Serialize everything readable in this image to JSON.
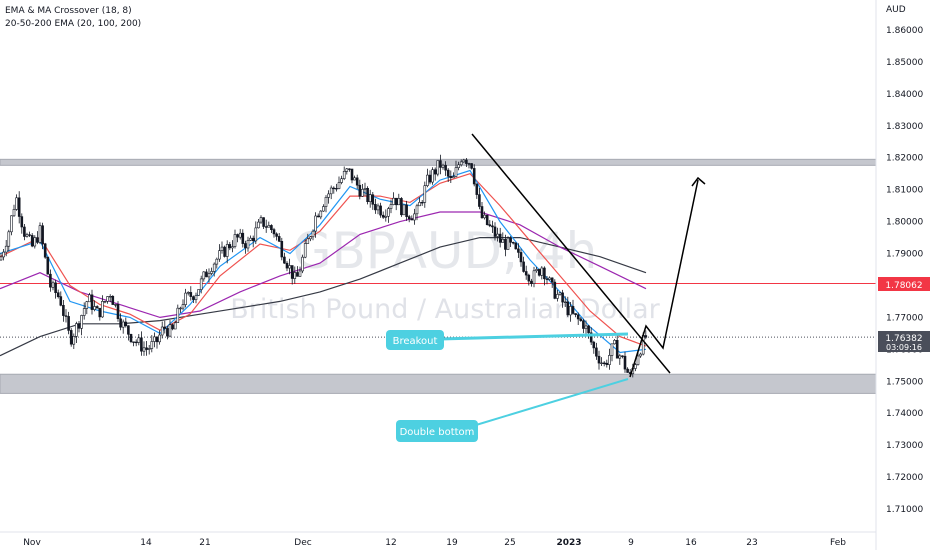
{
  "indicators": [
    "EMA & MA Crossover (18, 8)",
    "20-50-200 EMA (20, 100, 200)"
  ],
  "watermark": {
    "symbol": "GBPAUD, 4h",
    "name": "British Pound / Australian Dollar"
  },
  "price_axis": {
    "currency": "AUD",
    "ticks": [
      "1.86000",
      "1.85000",
      "1.84000",
      "1.83000",
      "1.82000",
      "1.81000",
      "1.80000",
      "1.79000",
      "1.78000",
      "1.77000",
      "1.76000",
      "1.75000",
      "1.74000",
      "1.73000",
      "1.72000",
      "1.71000"
    ]
  },
  "time_axis": {
    "ticks": [
      "Nov",
      "14",
      "21",
      "Dec",
      "12",
      "19",
      "25",
      "2023",
      "9",
      "16",
      "23",
      "Feb"
    ]
  },
  "markers": {
    "red_level_label": "1.78062",
    "last_price_label": "1.76382",
    "countdown_label": "03:09:16"
  },
  "annotations": {
    "breakout": "Breakout",
    "double_bottom": "Double bottom"
  },
  "colors": {
    "bull": "#ffffff",
    "bear": "#131722",
    "ema20": "#2196f3",
    "ema100": "#9c27b0",
    "ema200": "#363a45",
    "ema_fast": "#ef5350",
    "zone": "#b2b5be",
    "red_level": "#f23645",
    "callout": "#4dd0e1",
    "axis_text": "#131722"
  },
  "chart_data": {
    "type": "candlestick",
    "timeframe": "4h",
    "y_range": [
      1.702,
      1.866
    ],
    "price_path": [
      {
        "x": 0,
        "y": 1.788
      },
      {
        "x": 8,
        "y": 1.796
      },
      {
        "x": 16,
        "y": 1.808
      },
      {
        "x": 24,
        "y": 1.797
      },
      {
        "x": 32,
        "y": 1.792
      },
      {
        "x": 40,
        "y": 1.797
      },
      {
        "x": 50,
        "y": 1.78
      },
      {
        "x": 60,
        "y": 1.776
      },
      {
        "x": 70,
        "y": 1.763
      },
      {
        "x": 78,
        "y": 1.768
      },
      {
        "x": 88,
        "y": 1.776
      },
      {
        "x": 98,
        "y": 1.771
      },
      {
        "x": 110,
        "y": 1.778
      },
      {
        "x": 122,
        "y": 1.768
      },
      {
        "x": 134,
        "y": 1.763
      },
      {
        "x": 146,
        "y": 1.76
      },
      {
        "x": 156,
        "y": 1.762
      },
      {
        "x": 164,
        "y": 1.767
      },
      {
        "x": 172,
        "y": 1.765
      },
      {
        "x": 182,
        "y": 1.775
      },
      {
        "x": 196,
        "y": 1.778
      },
      {
        "x": 210,
        "y": 1.786
      },
      {
        "x": 222,
        "y": 1.79
      },
      {
        "x": 236,
        "y": 1.795
      },
      {
        "x": 248,
        "y": 1.793
      },
      {
        "x": 262,
        "y": 1.8
      },
      {
        "x": 274,
        "y": 1.797
      },
      {
        "x": 286,
        "y": 1.788
      },
      {
        "x": 296,
        "y": 1.781
      },
      {
        "x": 306,
        "y": 1.792
      },
      {
        "x": 316,
        "y": 1.802
      },
      {
        "x": 326,
        "y": 1.808
      },
      {
        "x": 338,
        "y": 1.812
      },
      {
        "x": 348,
        "y": 1.816
      },
      {
        "x": 360,
        "y": 1.81
      },
      {
        "x": 372,
        "y": 1.806
      },
      {
        "x": 384,
        "y": 1.803
      },
      {
        "x": 394,
        "y": 1.808
      },
      {
        "x": 404,
        "y": 1.803
      },
      {
        "x": 416,
        "y": 1.802
      },
      {
        "x": 428,
        "y": 1.813
      },
      {
        "x": 440,
        "y": 1.818
      },
      {
        "x": 452,
        "y": 1.812
      },
      {
        "x": 462,
        "y": 1.821
      },
      {
        "x": 472,
        "y": 1.818
      },
      {
        "x": 480,
        "y": 1.802
      },
      {
        "x": 490,
        "y": 1.798
      },
      {
        "x": 500,
        "y": 1.794
      },
      {
        "x": 512,
        "y": 1.792
      },
      {
        "x": 522,
        "y": 1.787
      },
      {
        "x": 532,
        "y": 1.782
      },
      {
        "x": 542,
        "y": 1.786
      },
      {
        "x": 552,
        "y": 1.779
      },
      {
        "x": 562,
        "y": 1.775
      },
      {
        "x": 574,
        "y": 1.77
      },
      {
        "x": 584,
        "y": 1.768
      },
      {
        "x": 594,
        "y": 1.76
      },
      {
        "x": 604,
        "y": 1.755
      },
      {
        "x": 614,
        "y": 1.761
      },
      {
        "x": 622,
        "y": 1.757
      },
      {
        "x": 630,
        "y": 1.751
      },
      {
        "x": 638,
        "y": 1.759
      },
      {
        "x": 646,
        "y": 1.764
      }
    ],
    "ema20_path": [
      {
        "x": 0,
        "y": 1.79
      },
      {
        "x": 40,
        "y": 1.794
      },
      {
        "x": 70,
        "y": 1.775
      },
      {
        "x": 100,
        "y": 1.772
      },
      {
        "x": 130,
        "y": 1.77
      },
      {
        "x": 160,
        "y": 1.765
      },
      {
        "x": 190,
        "y": 1.774
      },
      {
        "x": 220,
        "y": 1.786
      },
      {
        "x": 260,
        "y": 1.795
      },
      {
        "x": 290,
        "y": 1.79
      },
      {
        "x": 320,
        "y": 1.799
      },
      {
        "x": 350,
        "y": 1.811
      },
      {
        "x": 380,
        "y": 1.807
      },
      {
        "x": 410,
        "y": 1.805
      },
      {
        "x": 440,
        "y": 1.813
      },
      {
        "x": 470,
        "y": 1.816
      },
      {
        "x": 500,
        "y": 1.8
      },
      {
        "x": 530,
        "y": 1.788
      },
      {
        "x": 560,
        "y": 1.778
      },
      {
        "x": 590,
        "y": 1.767
      },
      {
        "x": 620,
        "y": 1.759
      },
      {
        "x": 646,
        "y": 1.76
      }
    ],
    "ema_fast_path": [
      {
        "x": 0,
        "y": 1.789
      },
      {
        "x": 40,
        "y": 1.795
      },
      {
        "x": 70,
        "y": 1.78
      },
      {
        "x": 100,
        "y": 1.774
      },
      {
        "x": 130,
        "y": 1.771
      },
      {
        "x": 160,
        "y": 1.766
      },
      {
        "x": 190,
        "y": 1.771
      },
      {
        "x": 220,
        "y": 1.783
      },
      {
        "x": 260,
        "y": 1.793
      },
      {
        "x": 290,
        "y": 1.791
      },
      {
        "x": 320,
        "y": 1.797
      },
      {
        "x": 350,
        "y": 1.808
      },
      {
        "x": 380,
        "y": 1.808
      },
      {
        "x": 410,
        "y": 1.806
      },
      {
        "x": 440,
        "y": 1.812
      },
      {
        "x": 470,
        "y": 1.815
      },
      {
        "x": 500,
        "y": 1.805
      },
      {
        "x": 530,
        "y": 1.794
      },
      {
        "x": 560,
        "y": 1.783
      },
      {
        "x": 590,
        "y": 1.772
      },
      {
        "x": 620,
        "y": 1.764
      },
      {
        "x": 646,
        "y": 1.761
      }
    ],
    "ema100_path": [
      {
        "x": 0,
        "y": 1.779
      },
      {
        "x": 40,
        "y": 1.784
      },
      {
        "x": 80,
        "y": 1.778
      },
      {
        "x": 120,
        "y": 1.774
      },
      {
        "x": 160,
        "y": 1.77
      },
      {
        "x": 200,
        "y": 1.772
      },
      {
        "x": 240,
        "y": 1.778
      },
      {
        "x": 280,
        "y": 1.783
      },
      {
        "x": 320,
        "y": 1.787
      },
      {
        "x": 360,
        "y": 1.796
      },
      {
        "x": 400,
        "y": 1.8
      },
      {
        "x": 440,
        "y": 1.803
      },
      {
        "x": 480,
        "y": 1.803
      },
      {
        "x": 520,
        "y": 1.799
      },
      {
        "x": 560,
        "y": 1.792
      },
      {
        "x": 600,
        "y": 1.786
      },
      {
        "x": 646,
        "y": 1.779
      }
    ],
    "ema200_path": [
      {
        "x": 0,
        "y": 1.758
      },
      {
        "x": 40,
        "y": 1.764
      },
      {
        "x": 80,
        "y": 1.768
      },
      {
        "x": 120,
        "y": 1.768
      },
      {
        "x": 160,
        "y": 1.769
      },
      {
        "x": 200,
        "y": 1.771
      },
      {
        "x": 240,
        "y": 1.773
      },
      {
        "x": 280,
        "y": 1.775
      },
      {
        "x": 320,
        "y": 1.778
      },
      {
        "x": 360,
        "y": 1.782
      },
      {
        "x": 400,
        "y": 1.787
      },
      {
        "x": 440,
        "y": 1.792
      },
      {
        "x": 480,
        "y": 1.795
      },
      {
        "x": 520,
        "y": 1.795
      },
      {
        "x": 560,
        "y": 1.792
      },
      {
        "x": 600,
        "y": 1.789
      },
      {
        "x": 646,
        "y": 1.784
      }
    ],
    "zones": [
      {
        "label": "resistance",
        "y_from": 1.8182,
        "y_to": 1.8195
      },
      {
        "label": "support",
        "y_from": 1.7462,
        "y_to": 1.7522
      }
    ],
    "red_level": 1.78062,
    "last_price": 1.76382
  }
}
